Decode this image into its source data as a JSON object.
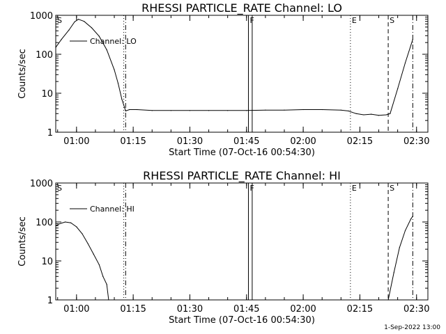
{
  "footer_date": "1-Sep-2022 13:00",
  "chart_data": [
    {
      "type": "line",
      "title": "RHESSI PARTICLE_RATE Channel: LO",
      "xlabel": "Start Time (07-Oct-16 00:54:30)",
      "ylabel": "Counts/sec",
      "yscale": "log",
      "xlim": [
        "00:54:30",
        "02:33:00"
      ],
      "ylim": [
        1,
        1000
      ],
      "x_tick_labels": [
        "01:00",
        "01:15",
        "01:30",
        "01:45",
        "02:00",
        "02:15",
        "02:30"
      ],
      "y_tick_labels": [
        "1",
        "10",
        "100",
        "1000"
      ],
      "legend": "Channel: LO",
      "legend_position": "top-left",
      "series": [
        {
          "name": "Channel: LO",
          "x": [
            "00:54:30",
            "00:56:00",
            "00:58:00",
            "00:59:30",
            "01:00:30",
            "01:02:00",
            "01:04:00",
            "01:06:00",
            "01:08:00",
            "01:10:00",
            "01:11:00",
            "01:12:00",
            "01:13:00",
            "01:14:00",
            "01:16:00",
            "01:20:00",
            "01:25:00",
            "01:30:00",
            "01:35:00",
            "01:40:00",
            "01:45:00",
            "01:50:00",
            "01:55:00",
            "02:00:00",
            "02:05:00",
            "02:10:00",
            "02:12:00",
            "02:14:00",
            "02:16:00",
            "02:18:00",
            "02:20:00",
            "02:22:00",
            "02:23:00",
            "02:25:00",
            "02:27:00",
            "02:29:00"
          ],
          "y": [
            150,
            240,
            420,
            680,
            790,
            700,
            480,
            290,
            130,
            40,
            18,
            7,
            3.5,
            3.8,
            3.8,
            3.6,
            3.6,
            3.6,
            3.6,
            3.6,
            3.6,
            3.7,
            3.7,
            3.8,
            3.8,
            3.7,
            3.5,
            3.0,
            2.8,
            2.9,
            2.7,
            2.8,
            3.0,
            13,
            60,
            240
          ]
        }
      ],
      "vertical_markers": [
        {
          "time": "00:54:30",
          "style": "solid",
          "flag": "S"
        },
        {
          "time": "01:12:30",
          "style": "dotted",
          "flag": ""
        },
        {
          "time": "01:13:00",
          "style": "dash-dot",
          "flag": ""
        },
        {
          "time": "01:45:30",
          "style": "solid",
          "flag": "F"
        },
        {
          "time": "01:46:30",
          "style": "solid",
          "flag": ""
        },
        {
          "time": "02:12:30",
          "style": "dotted",
          "flag": "E"
        },
        {
          "time": "02:22:30",
          "style": "dashed",
          "flag": "S"
        },
        {
          "time": "02:29:00",
          "style": "dash-dot",
          "flag": ""
        }
      ]
    },
    {
      "type": "line",
      "title": "RHESSI PARTICLE_RATE Channel: HI",
      "xlabel": "Start Time (07-Oct-16 00:54:30)",
      "ylabel": "Counts/sec",
      "yscale": "log",
      "xlim": [
        "00:54:30",
        "02:33:00"
      ],
      "ylim": [
        1,
        1000
      ],
      "x_tick_labels": [
        "01:00",
        "01:15",
        "01:30",
        "01:45",
        "02:00",
        "02:15",
        "02:30"
      ],
      "y_tick_labels": [
        "1",
        "10",
        "100",
        "1000"
      ],
      "legend": "Channel: HI",
      "legend_position": "top-left",
      "series": [
        {
          "name": "Channel: HI",
          "x": [
            "00:54:30",
            "00:55:30",
            "00:57:00",
            "00:58:30",
            "01:00:00",
            "01:01:30",
            "01:03:00",
            "01:04:30",
            "01:06:00",
            "01:07:00",
            "01:08:00",
            "01:08:30",
            "02:22:30",
            "02:24:00",
            "02:25:30",
            "02:27:00",
            "02:28:30",
            "02:29:00"
          ],
          "y": [
            80,
            90,
            100,
            95,
            75,
            50,
            28,
            15,
            8,
            4,
            2.5,
            1,
            1,
            5,
            22,
            60,
            120,
            140
          ]
        }
      ],
      "vertical_markers": [
        {
          "time": "00:54:30",
          "style": "solid",
          "flag": "S"
        },
        {
          "time": "01:12:30",
          "style": "dotted",
          "flag": ""
        },
        {
          "time": "01:13:00",
          "style": "dash-dot",
          "flag": ""
        },
        {
          "time": "01:45:30",
          "style": "solid",
          "flag": "F"
        },
        {
          "time": "01:46:30",
          "style": "solid",
          "flag": ""
        },
        {
          "time": "02:12:30",
          "style": "dotted",
          "flag": "E"
        },
        {
          "time": "02:22:30",
          "style": "dashed",
          "flag": "S"
        },
        {
          "time": "02:29:00",
          "style": "dash-dot",
          "flag": ""
        }
      ]
    }
  ]
}
